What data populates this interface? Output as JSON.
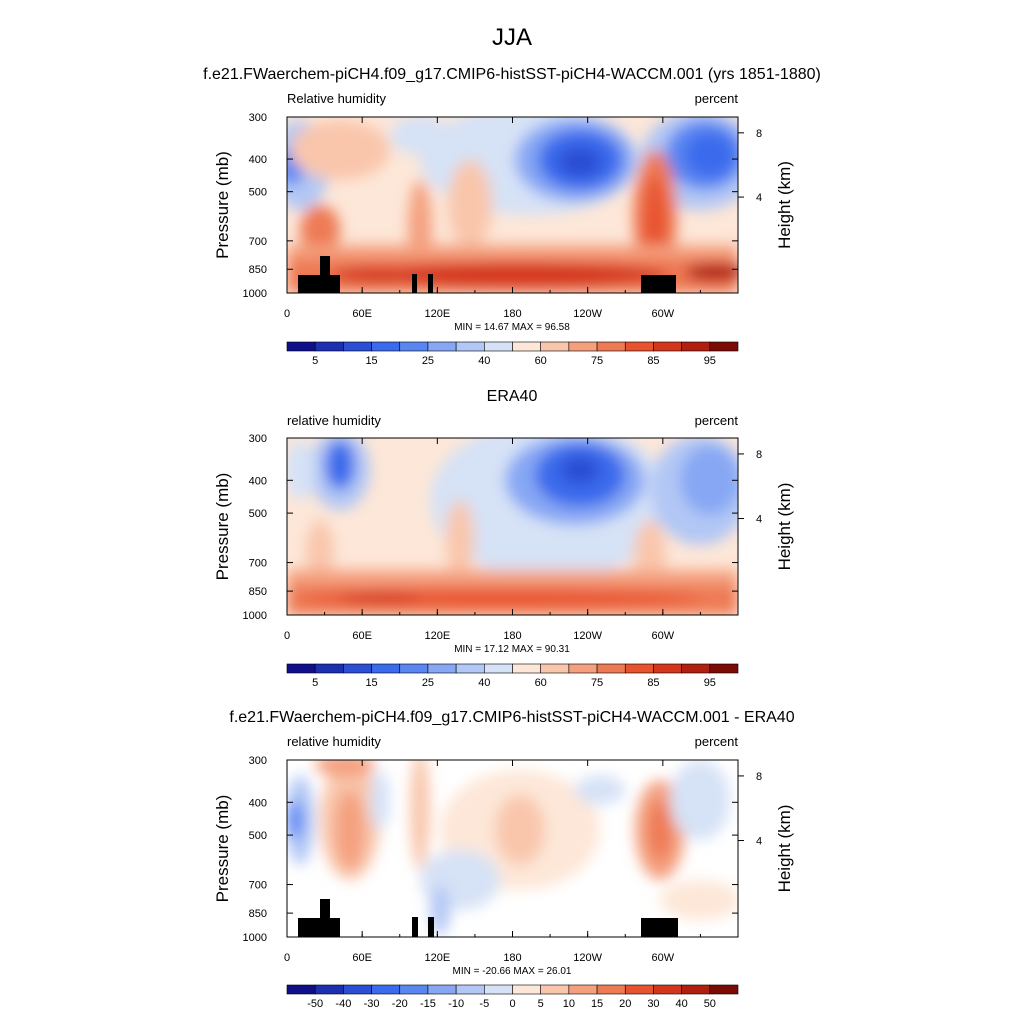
{
  "page_title": "JJA",
  "chart_data": [
    {
      "type": "heatmap",
      "title": "f.e21.FWaerchem-piCH4.f09_g17.CMIP6-histSST-piCH4-WACCM.001 (yrs 1851-1880)",
      "left_label": "Relative humidity",
      "right_label": "percent",
      "xlabel": "",
      "ylabel": "Pressure (mb)",
      "y2label": "Height (km)",
      "x_ticks": [
        "0",
        "60E",
        "120E",
        "180",
        "120W",
        "60W"
      ],
      "y_ticks": [
        "300",
        "400",
        "500",
        "700",
        "850",
        "1000"
      ],
      "y2_ticks": [
        "8",
        "4"
      ],
      "y_log_scale": true,
      "ylim": [
        1000,
        300
      ],
      "stats": "MIN = 14.67  MAX = 96.58",
      "min": 14.67,
      "max": 96.58,
      "colorbar_labels": [
        "5",
        "15",
        "25",
        "40",
        "60",
        "75",
        "85",
        "95"
      ],
      "colorbar_colors": [
        "#0f0f8c",
        "#1c2fb0",
        "#2a4ed4",
        "#3b6aec",
        "#5a86f2",
        "#87a7f4",
        "#b2c7f5",
        "#d6e2f6",
        "#fde7d8",
        "#f9c6ac",
        "#f4a07f",
        "#ee7a54",
        "#e8532f",
        "#d4361c",
        "#b01f10",
        "#7d0b05"
      ]
    },
    {
      "type": "heatmap",
      "title": "ERA40",
      "left_label": "relative humidity",
      "right_label": "percent",
      "xlabel": "",
      "ylabel": "Pressure (mb)",
      "y2label": "Height (km)",
      "x_ticks": [
        "0",
        "60E",
        "120E",
        "180",
        "120W",
        "60W"
      ],
      "y_ticks": [
        "300",
        "400",
        "500",
        "700",
        "850",
        "1000"
      ],
      "y2_ticks": [
        "8",
        "4"
      ],
      "y_log_scale": true,
      "ylim": [
        1000,
        300
      ],
      "stats": "MIN = 17.12  MAX = 90.31",
      "min": 17.12,
      "max": 90.31,
      "colorbar_labels": [
        "5",
        "15",
        "25",
        "40",
        "60",
        "75",
        "85",
        "95"
      ],
      "colorbar_colors": [
        "#0f0f8c",
        "#1c2fb0",
        "#2a4ed4",
        "#3b6aec",
        "#5a86f2",
        "#87a7f4",
        "#b2c7f5",
        "#d6e2f6",
        "#fde7d8",
        "#f9c6ac",
        "#f4a07f",
        "#ee7a54",
        "#e8532f",
        "#d4361c",
        "#b01f10",
        "#7d0b05"
      ]
    },
    {
      "type": "heatmap",
      "title": "f.e21.FWaerchem-piCH4.f09_g17.CMIP6-histSST-piCH4-WACCM.001 - ERA40",
      "left_label": "relative humidity",
      "right_label": "percent",
      "xlabel": "",
      "ylabel": "Pressure (mb)",
      "y2label": "Height (km)",
      "x_ticks": [
        "0",
        "60E",
        "120E",
        "180",
        "120W",
        "60W"
      ],
      "y_ticks": [
        "300",
        "400",
        "500",
        "700",
        "850",
        "1000"
      ],
      "y2_ticks": [
        "8",
        "4"
      ],
      "y_log_scale": true,
      "ylim": [
        1000,
        300
      ],
      "stats": "MIN = -20.66  MAX = 26.01",
      "min": -20.66,
      "max": 26.01,
      "colorbar_labels": [
        "-50",
        "-40",
        "-30",
        "-20",
        "-15",
        "-10",
        "-5",
        "0",
        "5",
        "10",
        "15",
        "20",
        "30",
        "40",
        "50"
      ],
      "colorbar_colors": [
        "#0f0f8c",
        "#1c2fb0",
        "#2a4ed4",
        "#3b6aec",
        "#5a86f2",
        "#87a7f4",
        "#b2c7f5",
        "#d6e2f6",
        "#fde7d8",
        "#f9c6ac",
        "#f4a07f",
        "#ee7a54",
        "#e8532f",
        "#d4361c",
        "#b01f10",
        "#7d0b05"
      ]
    }
  ]
}
